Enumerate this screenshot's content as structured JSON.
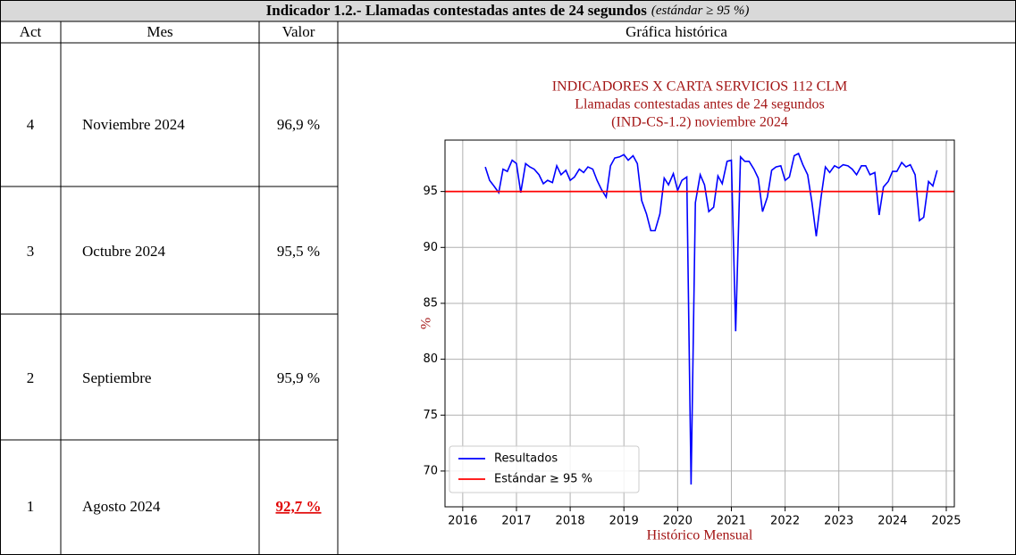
{
  "header": {
    "title": "Indicador 1.2.- Llamadas contestadas antes de 24 segundos",
    "note": "(estándar ≥ 95 %)"
  },
  "table": {
    "columns": [
      "Act",
      "Mes",
      "Valor",
      "Gráfica histórica"
    ],
    "rows": [
      {
        "act": 4,
        "mes": "Noviembre 2024",
        "valor": "96,9 %"
      },
      {
        "act": 3,
        "mes": "Octubre 2024",
        "valor": "95,5 %"
      },
      {
        "act": 2,
        "mes": "Septiembre",
        "valor": "95,9 %"
      },
      {
        "act": 1,
        "mes": "Agosto 2024",
        "valor": "92,7 %",
        "valor_color": "#e00000"
      }
    ]
  },
  "chart_data": {
    "type": "line",
    "title": [
      "INDICADORES X CARTA SERVICIOS 112 CLM",
      "Llamadas contestadas antes de 24 segundos",
      "(IND-CS-1.2) noviembre 2024"
    ],
    "xlabel": "Histórico Mensual",
    "ylabel": "%",
    "x": [
      2016.42,
      2016.5,
      2016.58,
      2016.67,
      2016.75,
      2016.83,
      2016.92,
      2017.0,
      2017.08,
      2017.17,
      2017.25,
      2017.33,
      2017.42,
      2017.5,
      2017.58,
      2017.67,
      2017.75,
      2017.83,
      2017.92,
      2018.0,
      2018.08,
      2018.17,
      2018.25,
      2018.33,
      2018.42,
      2018.5,
      2018.58,
      2018.67,
      2018.75,
      2018.83,
      2018.92,
      2019.0,
      2019.08,
      2019.17,
      2019.25,
      2019.33,
      2019.42,
      2019.5,
      2019.58,
      2019.67,
      2019.75,
      2019.83,
      2019.92,
      2020.0,
      2020.08,
      2020.17,
      2020.25,
      2020.33,
      2020.42,
      2020.5,
      2020.58,
      2020.67,
      2020.75,
      2020.83,
      2020.92,
      2021.0,
      2021.08,
      2021.17,
      2021.25,
      2021.33,
      2021.42,
      2021.5,
      2021.58,
      2021.67,
      2021.75,
      2021.83,
      2021.92,
      2022.0,
      2022.08,
      2022.17,
      2022.25,
      2022.33,
      2022.42,
      2022.5,
      2022.58,
      2022.67,
      2022.75,
      2022.83,
      2022.92,
      2023.0,
      2023.08,
      2023.17,
      2023.25,
      2023.33,
      2023.42,
      2023.5,
      2023.58,
      2023.67,
      2023.75,
      2023.83,
      2023.92,
      2024.0,
      2024.08,
      2024.17,
      2024.25,
      2024.33,
      2024.42,
      2024.5,
      2024.58,
      2024.67,
      2024.75,
      2024.83
    ],
    "series": [
      {
        "name": "Resultados",
        "color": "#0000ff",
        "values": [
          97.2,
          96.0,
          95.5,
          94.9,
          97.0,
          96.8,
          97.8,
          97.5,
          94.9,
          97.5,
          97.2,
          97.0,
          96.5,
          95.7,
          96.0,
          95.8,
          97.3,
          96.5,
          96.9,
          96.0,
          96.3,
          97.0,
          96.7,
          97.2,
          97.0,
          96.0,
          95.2,
          94.5,
          97.3,
          98.0,
          98.1,
          98.3,
          97.8,
          98.2,
          97.5,
          94.2,
          93.0,
          91.5,
          91.5,
          93.0,
          96.2,
          95.6,
          96.6,
          95.1,
          96.0,
          96.3,
          68.8,
          94.0,
          96.5,
          95.6,
          93.2,
          93.6,
          96.4,
          95.7,
          97.7,
          97.8,
          82.5,
          98.1,
          97.7,
          97.7,
          97.0,
          96.2,
          93.2,
          94.5,
          96.9,
          97.2,
          97.3,
          96.0,
          96.3,
          98.2,
          98.4,
          97.4,
          96.5,
          94.0,
          91.0,
          94.5,
          97.2,
          96.7,
          97.3,
          97.1,
          97.4,
          97.3,
          97.0,
          96.5,
          97.3,
          97.3,
          96.5,
          96.7,
          92.9,
          95.4,
          95.9,
          96.8,
          96.8,
          97.6,
          97.2,
          97.4,
          96.5,
          92.4,
          92.7,
          95.9,
          95.5,
          96.9
        ]
      }
    ],
    "reference_lines": [
      {
        "name": "Estándar ≥ 95 %",
        "value": 95,
        "color": "#ff0000"
      }
    ],
    "xlim": [
      2015.67,
      2025.15
    ],
    "ylim": [
      66.8,
      99.6
    ],
    "xticks": [
      2016,
      2017,
      2018,
      2019,
      2020,
      2021,
      2022,
      2023,
      2024,
      2025
    ],
    "yticks": [
      70,
      75,
      80,
      85,
      90,
      95
    ],
    "grid": true,
    "legend": "lower left",
    "title_color": "#a31515"
  }
}
